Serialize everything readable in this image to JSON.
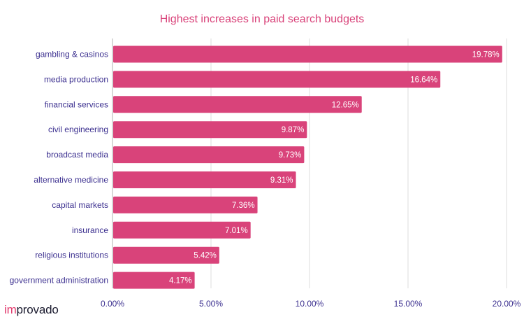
{
  "brand": {
    "accent": "im",
    "rest": "provado",
    "accent_color": "#e23b6e"
  },
  "chart_data": {
    "type": "bar",
    "orientation": "horizontal",
    "title": "Highest increases in paid search budgets",
    "xlabel": "",
    "ylabel": "",
    "categories": [
      "gambling & casinos",
      "media production",
      "financial services",
      "civil engineering",
      "broadcast media",
      "alternative medicine",
      "capital markets",
      "insurance",
      "religious institutions",
      "government administration"
    ],
    "values": [
      19.78,
      16.64,
      12.65,
      9.87,
      9.73,
      9.31,
      7.36,
      7.01,
      5.42,
      4.17
    ],
    "value_labels": [
      "19.78%",
      "16.64%",
      "12.65%",
      "9.87%",
      "9.73%",
      "9.31%",
      "7.36%",
      "7.01%",
      "5.42%",
      "4.17%"
    ],
    "xlim": [
      0,
      20
    ],
    "xticks": [
      0,
      5,
      10,
      15,
      20
    ],
    "xtick_labels": [
      "0.00%",
      "5.00%",
      "10.00%",
      "15.00%",
      "20.00%"
    ],
    "grid": true,
    "bar_color": "#d9437a",
    "title_color": "#d9437a",
    "label_color": "#3b2f8f"
  }
}
